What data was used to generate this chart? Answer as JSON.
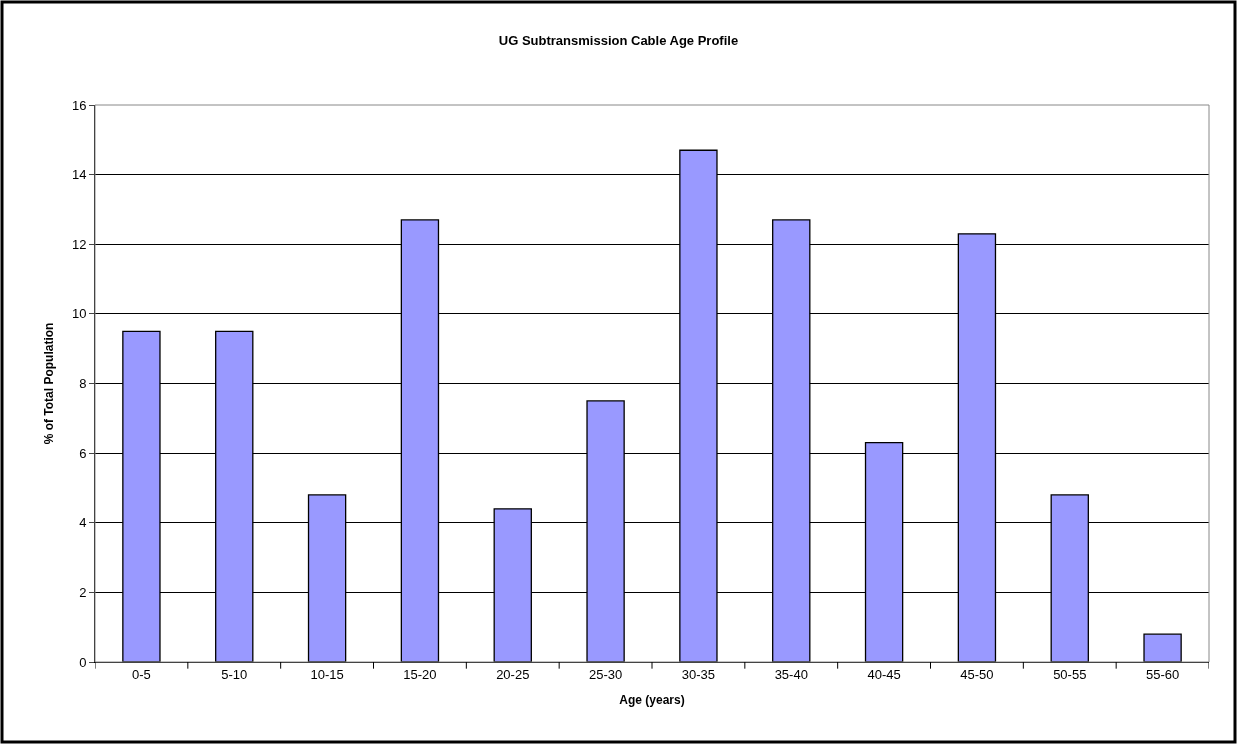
{
  "chart_data": {
    "type": "bar",
    "title": "UG Subtransmission Cable Age Profile",
    "xlabel": "Age (years)",
    "ylabel": "% of Total Population",
    "categories": [
      "0-5",
      "5-10",
      "10-15",
      "15-20",
      "20-25",
      "25-30",
      "30-35",
      "35-40",
      "40-45",
      "45-50",
      "50-55",
      "55-60"
    ],
    "values": [
      9.5,
      9.5,
      4.8,
      12.7,
      4.4,
      7.5,
      14.7,
      12.7,
      6.3,
      12.3,
      4.8,
      0.8
    ],
    "color": "#9999ff",
    "ylim": [
      0,
      16
    ],
    "yticks": [
      0,
      2,
      4,
      6,
      8,
      10,
      12,
      14,
      16
    ],
    "grid": "y",
    "legend": false
  }
}
